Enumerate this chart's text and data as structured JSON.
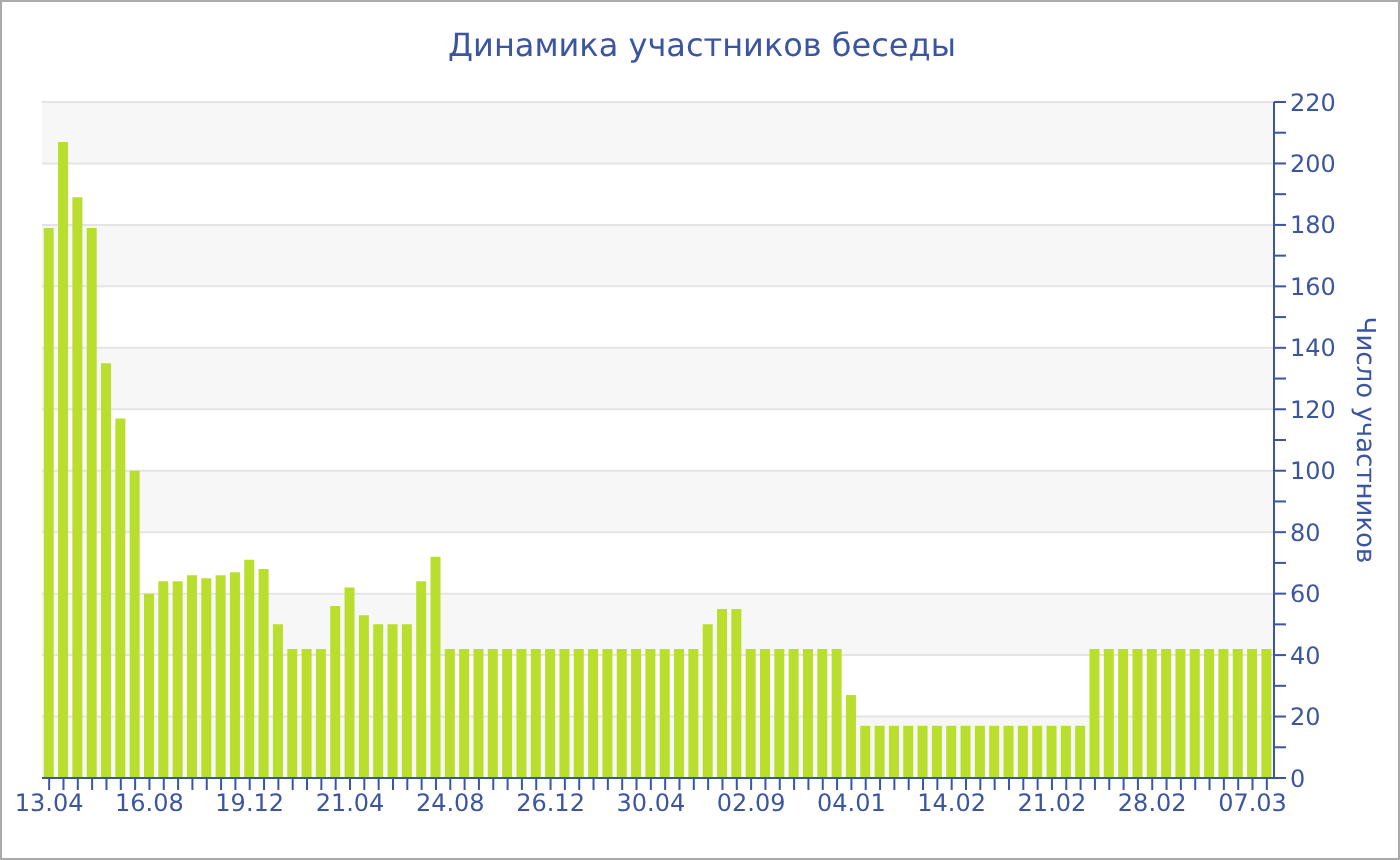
{
  "chart_data": {
    "type": "bar",
    "title": "Динамика участников беседы",
    "ylabel": "Число участников",
    "categories": [
      "13.04",
      null,
      null,
      null,
      null,
      null,
      null,
      "16.08",
      null,
      null,
      null,
      null,
      null,
      null,
      "19.12",
      null,
      null,
      null,
      null,
      null,
      null,
      "21.04",
      null,
      null,
      null,
      null,
      null,
      null,
      "24.08",
      null,
      null,
      null,
      null,
      null,
      null,
      "26.12",
      null,
      null,
      null,
      null,
      null,
      null,
      "30.04",
      null,
      null,
      null,
      null,
      null,
      null,
      "02.09",
      null,
      null,
      null,
      null,
      null,
      null,
      "04.01",
      null,
      null,
      null,
      null,
      null,
      null,
      "14.02",
      null,
      null,
      null,
      null,
      null,
      null,
      "21.02",
      null,
      null,
      null,
      null,
      null,
      null,
      "28.02",
      null,
      null,
      null,
      null,
      null,
      null,
      "07.03",
      null
    ],
    "values": [
      179,
      207,
      189,
      179,
      135,
      117,
      100,
      60,
      64,
      64,
      66,
      65,
      66,
      67,
      71,
      68,
      50,
      42,
      42,
      42,
      56,
      62,
      53,
      50,
      50,
      50,
      64,
      72,
      42,
      42,
      42,
      42,
      42,
      42,
      42,
      42,
      42,
      42,
      42,
      42,
      42,
      42,
      42,
      42,
      42,
      42,
      50,
      55,
      55,
      42,
      42,
      42,
      42,
      42,
      42,
      42,
      27,
      17,
      17,
      17,
      17,
      17,
      17,
      17,
      17,
      17,
      17,
      17,
      17,
      17,
      17,
      17,
      17,
      42,
      42,
      42,
      42,
      42,
      42,
      42,
      42,
      42,
      42,
      42,
      42,
      42
    ],
    "color": "#b9de2e",
    "ylim": [
      0,
      220
    ],
    "yticks": [
      0,
      {
        "value": 10,
        "label": null
      },
      20,
      {
        "value": 30,
        "label": null
      },
      40,
      {
        "value": 50,
        "label": null
      },
      60,
      {
        "value": 70,
        "label": null
      },
      80,
      {
        "value": 90,
        "label": null
      },
      100,
      {
        "value": 110,
        "label": null
      },
      120,
      {
        "value": 130,
        "label": null
      },
      140,
      {
        "value": 150,
        "label": null
      },
      160,
      {
        "value": 170,
        "label": null
      },
      180,
      {
        "value": 190,
        "label": null
      },
      200,
      {
        "value": 210,
        "label": null
      },
      220
    ],
    "grid": "y"
  }
}
